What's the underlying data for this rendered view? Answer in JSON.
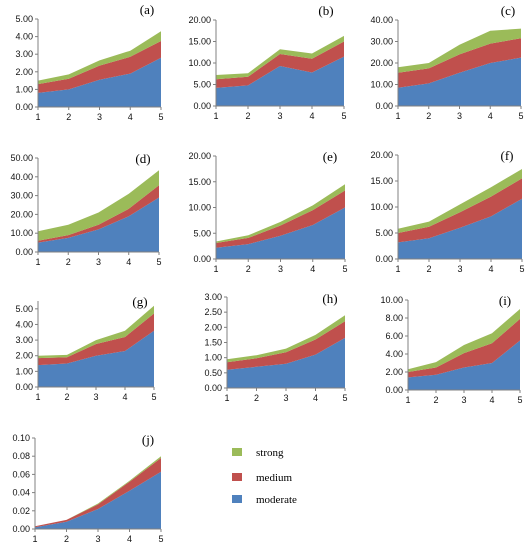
{
  "colors": {
    "moderate": "#4F81BD",
    "medium": "#C0504D",
    "strong": "#9BBB59"
  },
  "legend": [
    {
      "label": "strong",
      "color": "#9BBB59"
    },
    {
      "label": "medium",
      "color": "#C0504D"
    },
    {
      "label": "moderate",
      "color": "#4F81BD"
    }
  ],
  "chart_data": [
    {
      "type": "area",
      "stacked": true,
      "label": "(a)",
      "x": [
        1,
        2,
        3,
        4,
        5
      ],
      "yticks": [
        "0.00",
        "1.00",
        "2.00",
        "3.00",
        "4.00",
        "5.00"
      ],
      "ylim": [
        0,
        5
      ],
      "series": [
        {
          "name": "moderate",
          "values": [
            0.8,
            1.0,
            1.55,
            1.9,
            2.8
          ]
        },
        {
          "name": "medium",
          "values": [
            0.5,
            0.6,
            0.8,
            0.95,
            0.95
          ]
        },
        {
          "name": "strong",
          "values": [
            0.2,
            0.25,
            0.3,
            0.35,
            0.55
          ]
        }
      ]
    },
    {
      "type": "area",
      "stacked": true,
      "label": "(b)",
      "x": [
        1,
        2,
        3,
        4,
        5
      ],
      "yticks": [
        "0.00",
        "5.00",
        "10.00",
        "15.00",
        "20.00"
      ],
      "ylim": [
        0,
        20
      ],
      "series": [
        {
          "name": "moderate",
          "values": [
            4.2,
            4.8,
            9.3,
            7.8,
            11.5
          ]
        },
        {
          "name": "medium",
          "values": [
            2.0,
            2.0,
            2.8,
            3.2,
            3.5
          ]
        },
        {
          "name": "strong",
          "values": [
            1.0,
            0.8,
            1.1,
            1.2,
            1.3
          ]
        }
      ]
    },
    {
      "type": "area",
      "stacked": true,
      "label": "(c)",
      "x": [
        1,
        2,
        3,
        4,
        5
      ],
      "yticks": [
        "0.00",
        "10.00",
        "20.00",
        "30.00",
        "40.00"
      ],
      "ylim": [
        0,
        40
      ],
      "series": [
        {
          "name": "moderate",
          "values": [
            8.5,
            10.5,
            15.5,
            20.0,
            22.5
          ]
        },
        {
          "name": "medium",
          "values": [
            7.0,
            7.0,
            8.5,
            9.0,
            9.0
          ]
        },
        {
          "name": "strong",
          "values": [
            2.5,
            2.5,
            4.5,
            6.0,
            4.5
          ]
        }
      ]
    },
    {
      "type": "area",
      "stacked": true,
      "label": "(d)",
      "x": [
        1,
        2,
        3,
        4,
        5
      ],
      "yticks": [
        "0.00",
        "10.00",
        "20.00",
        "30.00",
        "40.00",
        "50.00"
      ],
      "ylim": [
        0,
        50
      ],
      "series": [
        {
          "name": "moderate",
          "values": [
            5.0,
            7.5,
            12.0,
            19.0,
            29.0
          ]
        },
        {
          "name": "medium",
          "values": [
            1.0,
            1.5,
            2.5,
            4.0,
            6.5
          ]
        },
        {
          "name": "strong",
          "values": [
            5.0,
            5.5,
            6.5,
            8.0,
            8.0
          ]
        }
      ]
    },
    {
      "type": "area",
      "stacked": true,
      "label": "(e)",
      "x": [
        1,
        2,
        3,
        4,
        5
      ],
      "yticks": [
        "0.00",
        "5.00",
        "10.00",
        "15.00",
        "20.00"
      ],
      "ylim": [
        0,
        20
      ],
      "series": [
        {
          "name": "moderate",
          "values": [
            2.2,
            2.9,
            4.5,
            6.6,
            10.0
          ]
        },
        {
          "name": "medium",
          "values": [
            0.9,
            1.2,
            2.0,
            2.9,
            3.3
          ]
        },
        {
          "name": "strong",
          "values": [
            0.3,
            0.5,
            0.7,
            0.9,
            1.2
          ]
        }
      ]
    },
    {
      "type": "area",
      "stacked": true,
      "label": "(f)",
      "x": [
        1,
        2,
        3,
        4,
        5
      ],
      "yticks": [
        "0.00",
        "5.00",
        "10.00",
        "15.00",
        "20.00"
      ],
      "ylim": [
        0,
        20
      ],
      "series": [
        {
          "name": "moderate",
          "values": [
            3.2,
            4.0,
            6.0,
            8.2,
            11.6
          ]
        },
        {
          "name": "medium",
          "values": [
            1.8,
            2.2,
            3.0,
            3.8,
            3.9
          ]
        },
        {
          "name": "strong",
          "values": [
            0.8,
            1.0,
            1.5,
            1.8,
            1.8
          ]
        }
      ]
    },
    {
      "type": "area",
      "stacked": true,
      "label": "(g)",
      "x": [
        1,
        2,
        3,
        4,
        5
      ],
      "yticks": [
        "0.00",
        "1.00",
        "2.00",
        "3.00",
        "4.00",
        "5.00"
      ],
      "ylim": [
        0,
        5.5
      ],
      "series": [
        {
          "name": "moderate",
          "values": [
            1.4,
            1.5,
            2.0,
            2.3,
            3.6
          ]
        },
        {
          "name": "medium",
          "values": [
            0.45,
            0.4,
            0.75,
            0.9,
            1.1
          ]
        },
        {
          "name": "strong",
          "values": [
            0.15,
            0.15,
            0.25,
            0.4,
            0.5
          ]
        }
      ]
    },
    {
      "type": "area",
      "stacked": true,
      "label": "(h)",
      "x": [
        1,
        2,
        3,
        4,
        5
      ],
      "yticks": [
        "0.00",
        "0.50",
        "1.00",
        "1.50",
        "2.00",
        "2.50",
        "3.00"
      ],
      "ylim": [
        0,
        3
      ],
      "series": [
        {
          "name": "moderate",
          "values": [
            0.6,
            0.7,
            0.8,
            1.1,
            1.65
          ]
        },
        {
          "name": "medium",
          "values": [
            0.25,
            0.28,
            0.38,
            0.5,
            0.55
          ]
        },
        {
          "name": "strong",
          "values": [
            0.1,
            0.1,
            0.12,
            0.15,
            0.2
          ]
        }
      ]
    },
    {
      "type": "area",
      "stacked": true,
      "label": "(i)",
      "x": [
        1,
        2,
        3,
        4,
        5
      ],
      "yticks": [
        "0.00",
        "2.00",
        "4.00",
        "6.00",
        "8.00",
        "10.00"
      ],
      "ylim": [
        0,
        10
      ],
      "series": [
        {
          "name": "moderate",
          "values": [
            1.4,
            1.7,
            2.5,
            3.0,
            5.5
          ]
        },
        {
          "name": "medium",
          "values": [
            0.6,
            0.8,
            1.6,
            2.2,
            2.4
          ]
        },
        {
          "name": "strong",
          "values": [
            0.3,
            0.6,
            0.9,
            1.1,
            1.1
          ]
        }
      ]
    },
    {
      "type": "area",
      "stacked": true,
      "label": "(j)",
      "x": [
        1,
        2,
        3,
        4,
        5
      ],
      "yticks": [
        "0.00",
        "0.02",
        "0.04",
        "0.06",
        "0.08",
        "0.10"
      ],
      "ylim": [
        0,
        0.1
      ],
      "series": [
        {
          "name": "moderate",
          "values": [
            0.002,
            0.008,
            0.022,
            0.042,
            0.063
          ]
        },
        {
          "name": "medium",
          "values": [
            0.001,
            0.002,
            0.005,
            0.01,
            0.015
          ]
        },
        {
          "name": "strong",
          "values": [
            0.0,
            0.0,
            0.001,
            0.001,
            0.002
          ]
        }
      ]
    }
  ]
}
